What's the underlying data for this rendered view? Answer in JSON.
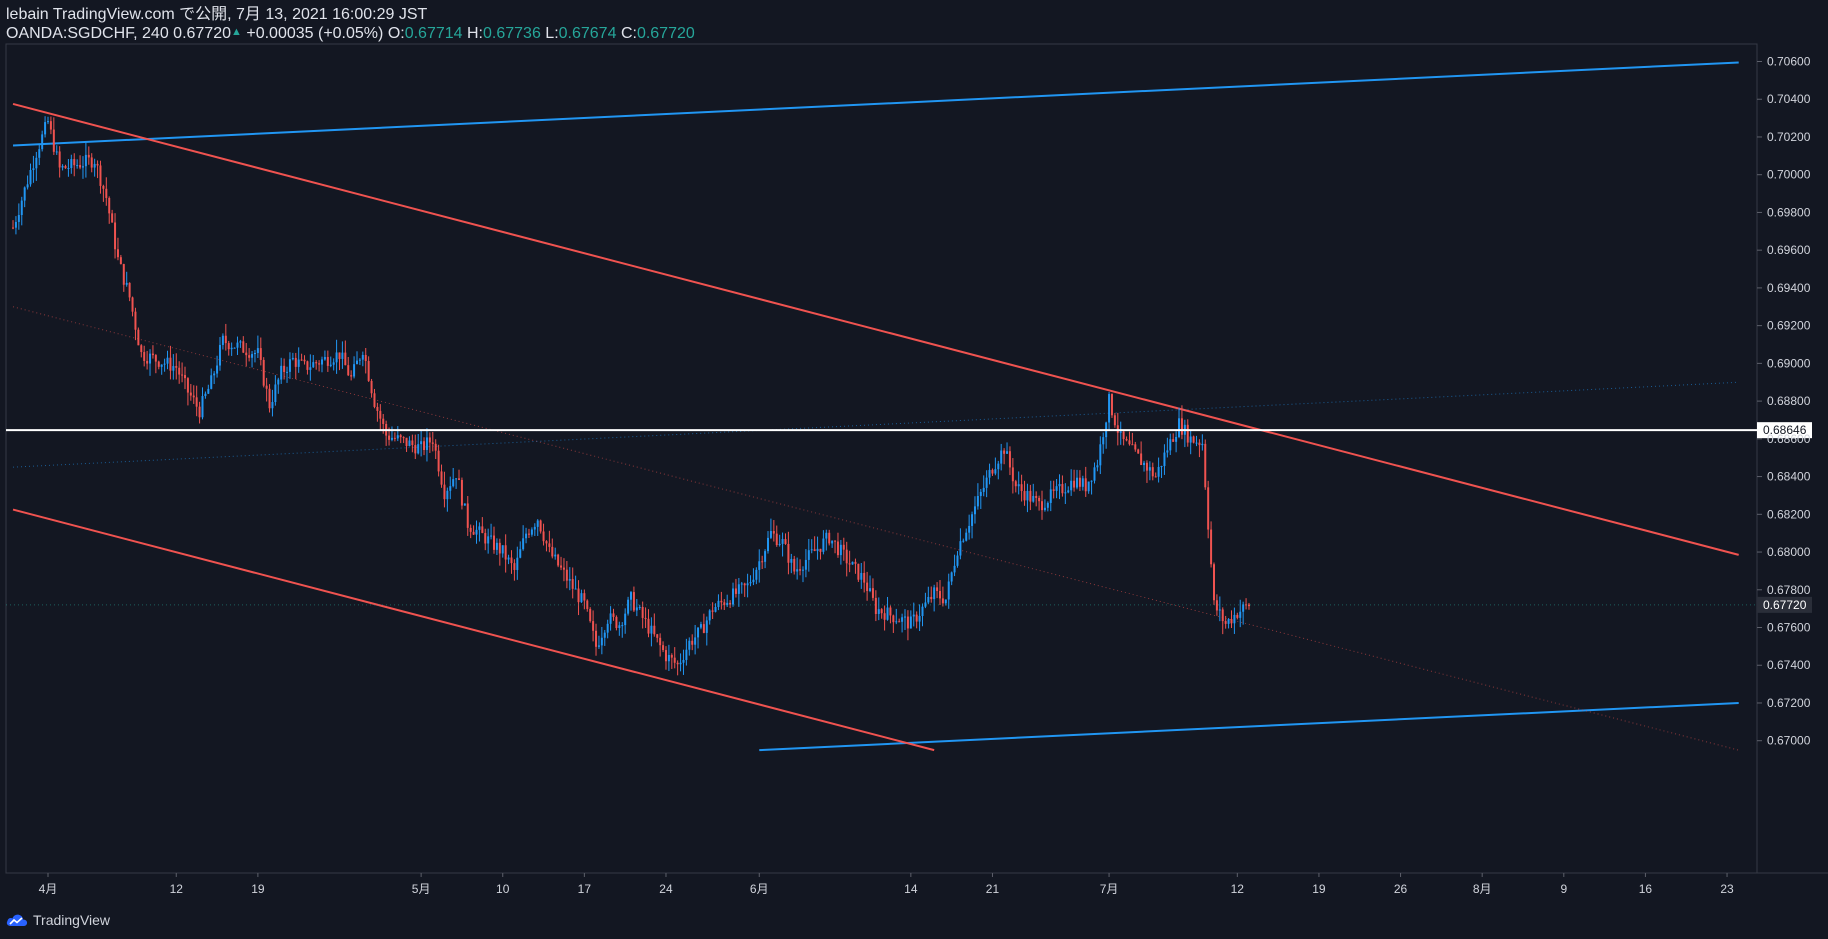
{
  "header": {
    "line1": "lebain TradingView.com で公開, 7月 13, 2021 16:00:29 JST",
    "symbol": "OANDA:SGDCHF, 240",
    "last": "0.67720",
    "change": "+0.00035 (+0.05%)",
    "o_label": "O:",
    "o_value": "0.67714",
    "h_label": "H:",
    "h_value": "0.67736",
    "l_label": "L:",
    "l_value": "0.67674",
    "c_label": "C:",
    "c_value": "0.67720"
  },
  "footer": {
    "brand": "TradingView",
    "logo_icon": "tradingview-cloud-logo-icon"
  },
  "colors": {
    "background": "#131722",
    "up": "#2196f3",
    "down": "#f05350",
    "trend_blue": "#2196f3",
    "trend_red": "#f05350",
    "horizontal": "#ffffff",
    "text": "#d1d4dc",
    "green": "#26a69a"
  },
  "chart_data": {
    "type": "candlestick",
    "interval": "240",
    "ylim": [
      0.6695,
      0.7073
    ],
    "y_ticks": [
      "0.70600",
      "0.70400",
      "0.70200",
      "0.70000",
      "0.69800",
      "0.69600",
      "0.69400",
      "0.69200",
      "0.69000",
      "0.68800",
      "0.68600",
      "0.68400",
      "0.68200",
      "0.68000",
      "0.67800",
      "0.67600",
      "0.67400",
      "0.67200",
      "0.67000"
    ],
    "x_ticks": [
      {
        "label": "4月",
        "date": "2021-04-01"
      },
      {
        "label": "12",
        "date": "2021-04-12"
      },
      {
        "label": "19",
        "date": "2021-04-19"
      },
      {
        "label": "5月",
        "date": "2021-05-03"
      },
      {
        "label": "10",
        "date": "2021-05-10"
      },
      {
        "label": "17",
        "date": "2021-05-17"
      },
      {
        "label": "24",
        "date": "2021-05-24"
      },
      {
        "label": "6月",
        "date": "2021-06-01"
      },
      {
        "label": "14",
        "date": "2021-06-14"
      },
      {
        "label": "21",
        "date": "2021-06-21"
      },
      {
        "label": "7月",
        "date": "2021-07-01"
      },
      {
        "label": "12",
        "date": "2021-07-12"
      },
      {
        "label": "19",
        "date": "2021-07-19"
      },
      {
        "label": "26",
        "date": "2021-07-26"
      },
      {
        "label": "8月",
        "date": "2021-08-02"
      },
      {
        "label": "9",
        "date": "2021-08-09"
      },
      {
        "label": "16",
        "date": "2021-08-16"
      },
      {
        "label": "23",
        "date": "2021-08-23"
      }
    ],
    "price_path": [
      {
        "date": "2021-03-29",
        "close": 0.6972
      },
      {
        "date": "2021-03-31",
        "close": 0.7012
      },
      {
        "date": "2021-04-01",
        "close": 0.7028
      },
      {
        "date": "2021-04-02",
        "close": 0.7003
      },
      {
        "date": "2021-04-05",
        "close": 0.7008
      },
      {
        "date": "2021-04-06",
        "close": 0.6988
      },
      {
        "date": "2021-04-07",
        "close": 0.6955
      },
      {
        "date": "2021-04-08",
        "close": 0.6935
      },
      {
        "date": "2021-04-09",
        "close": 0.6905
      },
      {
        "date": "2021-04-12",
        "close": 0.6898
      },
      {
        "date": "2021-04-13",
        "close": 0.6885
      },
      {
        "date": "2021-04-14",
        "close": 0.6875
      },
      {
        "date": "2021-04-15",
        "close": 0.689
      },
      {
        "date": "2021-04-16",
        "close": 0.6912
      },
      {
        "date": "2021-04-19",
        "close": 0.6905
      },
      {
        "date": "2021-04-20",
        "close": 0.6878
      },
      {
        "date": "2021-04-21",
        "close": 0.6895
      },
      {
        "date": "2021-04-22",
        "close": 0.6902
      },
      {
        "date": "2021-04-23",
        "close": 0.6898
      },
      {
        "date": "2021-04-26",
        "close": 0.6905
      },
      {
        "date": "2021-04-27",
        "close": 0.6892
      },
      {
        "date": "2021-04-28",
        "close": 0.6908
      },
      {
        "date": "2021-04-29",
        "close": 0.688
      },
      {
        "date": "2021-04-30",
        "close": 0.6862
      },
      {
        "date": "2021-05-03",
        "close": 0.6855
      },
      {
        "date": "2021-05-04",
        "close": 0.686
      },
      {
        "date": "2021-05-05",
        "close": 0.6832
      },
      {
        "date": "2021-05-06",
        "close": 0.6842
      },
      {
        "date": "2021-05-07",
        "close": 0.6815
      },
      {
        "date": "2021-05-10",
        "close": 0.68
      },
      {
        "date": "2021-05-11",
        "close": 0.679
      },
      {
        "date": "2021-05-12",
        "close": 0.681
      },
      {
        "date": "2021-05-13",
        "close": 0.6818
      },
      {
        "date": "2021-05-14",
        "close": 0.68
      },
      {
        "date": "2021-05-17",
        "close": 0.6772
      },
      {
        "date": "2021-05-18",
        "close": 0.675
      },
      {
        "date": "2021-05-19",
        "close": 0.6765
      },
      {
        "date": "2021-05-20",
        "close": 0.6762
      },
      {
        "date": "2021-05-21",
        "close": 0.6775
      },
      {
        "date": "2021-05-24",
        "close": 0.6745
      },
      {
        "date": "2021-05-25",
        "close": 0.674
      },
      {
        "date": "2021-05-26",
        "close": 0.6752
      },
      {
        "date": "2021-05-27",
        "close": 0.6758
      },
      {
        "date": "2021-05-28",
        "close": 0.677
      },
      {
        "date": "2021-05-31",
        "close": 0.6782
      },
      {
        "date": "2021-06-01",
        "close": 0.6795
      },
      {
        "date": "2021-06-02",
        "close": 0.681
      },
      {
        "date": "2021-06-03",
        "close": 0.6805
      },
      {
        "date": "2021-06-04",
        "close": 0.679
      },
      {
        "date": "2021-06-07",
        "close": 0.6808
      },
      {
        "date": "2021-06-08",
        "close": 0.68
      },
      {
        "date": "2021-06-09",
        "close": 0.6792
      },
      {
        "date": "2021-06-10",
        "close": 0.6785
      },
      {
        "date": "2021-06-11",
        "close": 0.677
      },
      {
        "date": "2021-06-14",
        "close": 0.6762
      },
      {
        "date": "2021-06-15",
        "close": 0.677
      },
      {
        "date": "2021-06-16",
        "close": 0.6778
      },
      {
        "date": "2021-06-17",
        "close": 0.6775
      },
      {
        "date": "2021-06-18",
        "close": 0.6802
      },
      {
        "date": "2021-06-21",
        "close": 0.6845
      },
      {
        "date": "2021-06-22",
        "close": 0.6855
      },
      {
        "date": "2021-06-23",
        "close": 0.6835
      },
      {
        "date": "2021-06-24",
        "close": 0.683
      },
      {
        "date": "2021-06-25",
        "close": 0.6825
      },
      {
        "date": "2021-06-28",
        "close": 0.6838
      },
      {
        "date": "2021-06-29",
        "close": 0.6835
      },
      {
        "date": "2021-06-30",
        "close": 0.6848
      },
      {
        "date": "2021-07-01",
        "close": 0.688
      },
      {
        "date": "2021-07-02",
        "close": 0.686
      },
      {
        "date": "2021-07-05",
        "close": 0.684
      },
      {
        "date": "2021-07-06",
        "close": 0.6855
      },
      {
        "date": "2021-07-07",
        "close": 0.6868
      },
      {
        "date": "2021-07-08",
        "close": 0.686
      },
      {
        "date": "2021-07-09",
        "close": 0.6858
      },
      {
        "date": "2021-07-10",
        "close": 0.6772
      },
      {
        "date": "2021-07-11",
        "close": 0.6762
      },
      {
        "date": "2021-07-12",
        "close": 0.6768
      },
      {
        "date": "2021-07-13",
        "close": 0.6772
      }
    ],
    "lines": [
      {
        "name": "",
        "color": "#2196f3",
        "style": "solid",
        "from": {
          "date": "2021-03-29",
          "price": 0.70155
        },
        "to": {
          "date": "2021-08-24",
          "price": 0.70595
        }
      },
      {
        "name": "",
        "color": "#2196f3",
        "style": "solid",
        "from": {
          "date": "2021-06-01",
          "price": 0.6695
        },
        "to": {
          "date": "2021-08-24",
          "price": 0.672
        }
      },
      {
        "name": "",
        "color": "#f05350",
        "style": "solid",
        "from": {
          "date": "2021-03-29",
          "price": 0.70375
        },
        "to": {
          "date": "2021-08-24",
          "price": 0.67985
        }
      },
      {
        "name": "",
        "color": "#f05350",
        "style": "solid",
        "from": {
          "date": "2021-03-29",
          "price": 0.68225
        },
        "to": {
          "date": "2021-06-16",
          "price": 0.6695
        }
      },
      {
        "name": "",
        "color": "#f05350",
        "style": "dotted",
        "from": {
          "date": "2021-03-29",
          "price": 0.693
        },
        "to": {
          "date": "2021-08-24",
          "price": 0.6695
        }
      },
      {
        "name": "",
        "color": "#2196f3",
        "style": "dotted",
        "from": {
          "date": "2021-03-29",
          "price": 0.6845
        },
        "to": {
          "date": "2021-08-24",
          "price": 0.689
        }
      }
    ],
    "horizontal_line": {
      "price": 0.68646,
      "label": "0.68646",
      "color": "#ffffff"
    },
    "last_price": {
      "price": 0.6772,
      "label": "0.67720"
    }
  }
}
